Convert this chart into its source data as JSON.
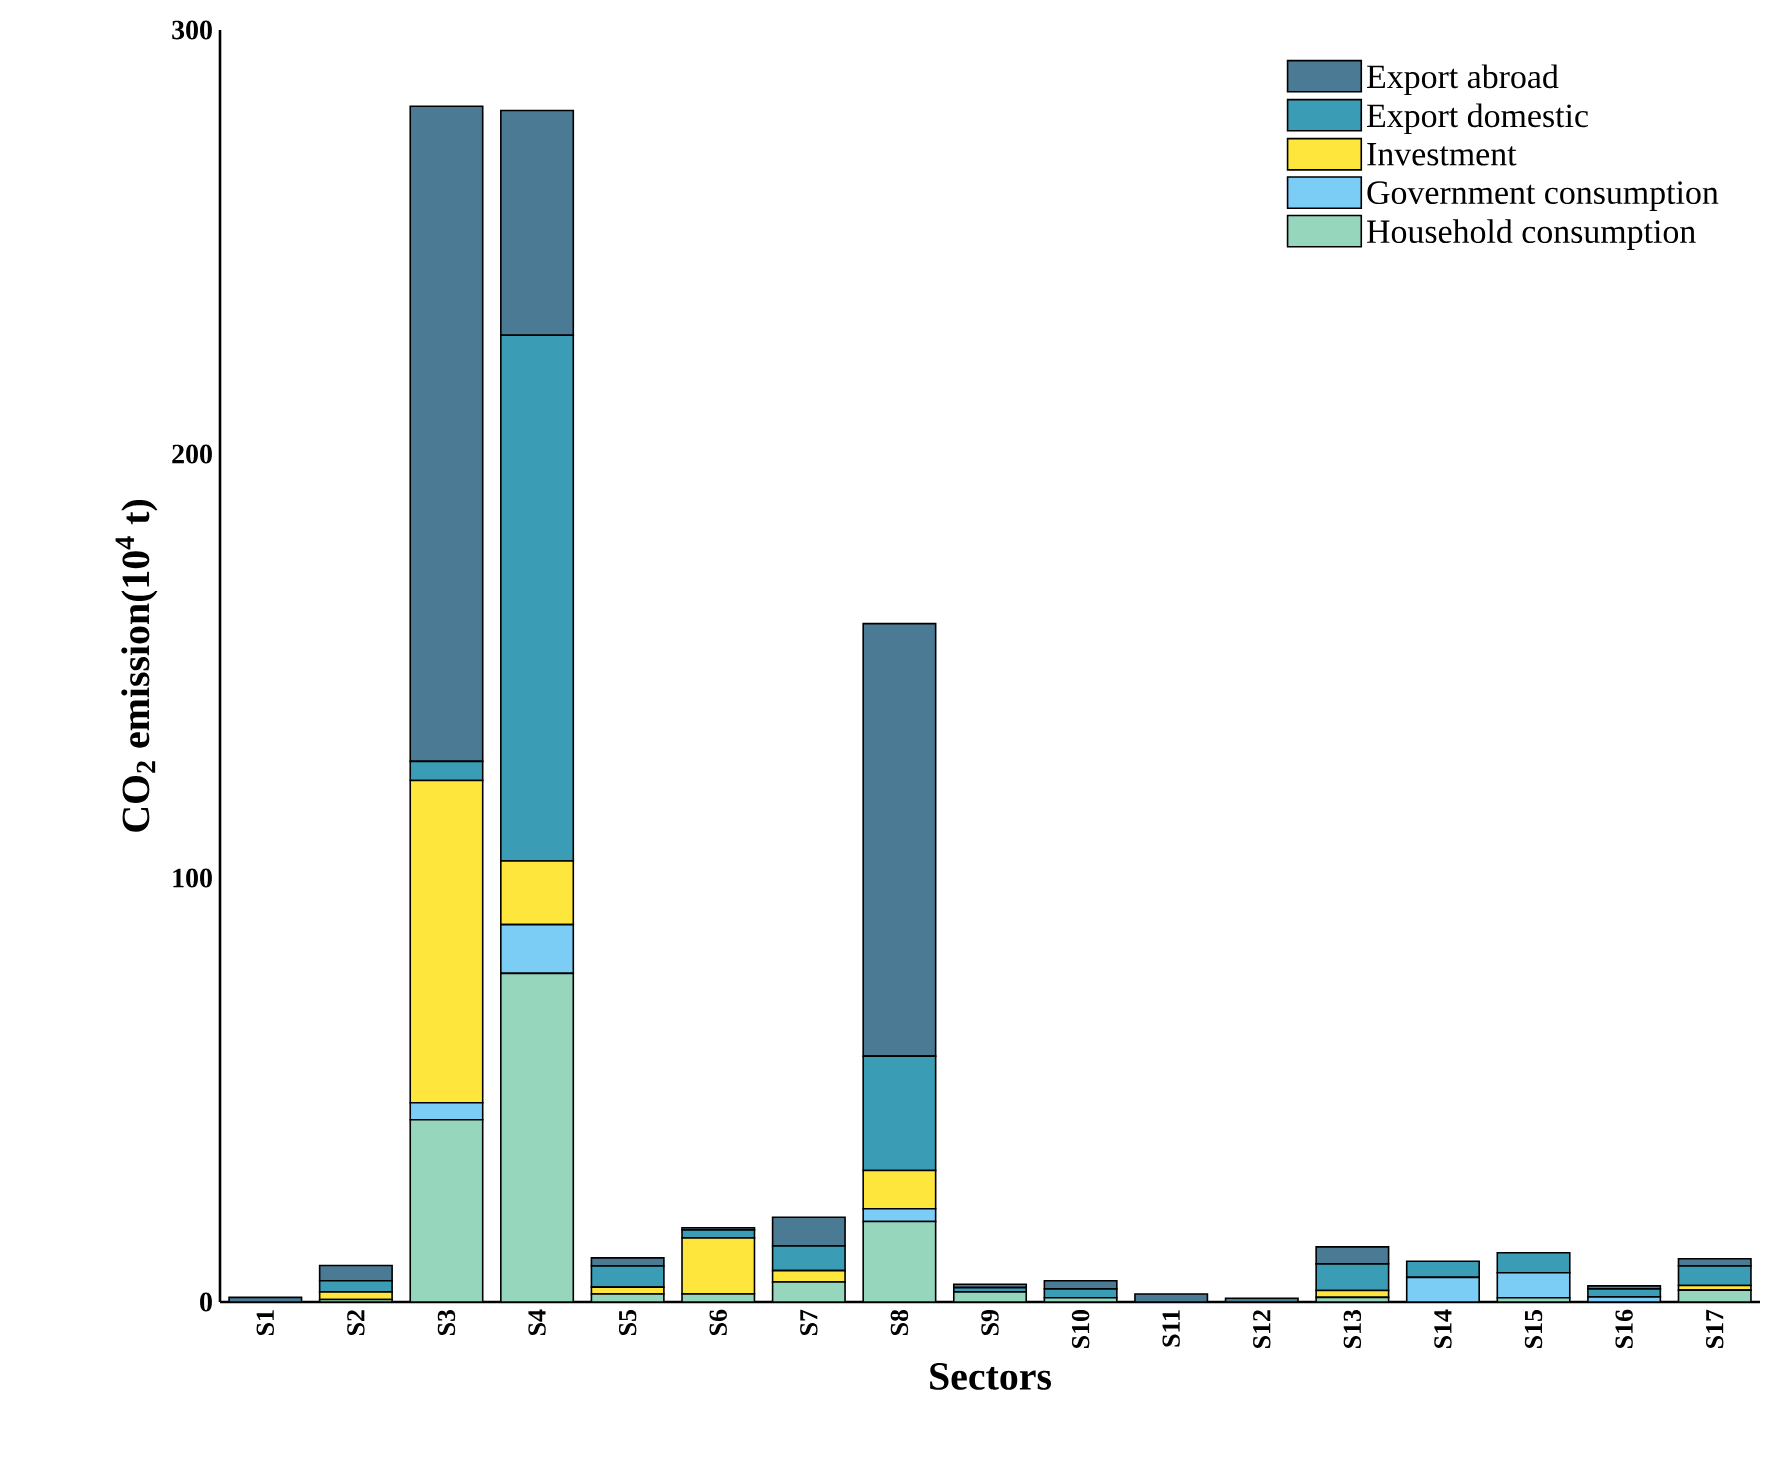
{
  "chart_data": {
    "type": "bar",
    "stacked": true,
    "xlabel": "Sectors",
    "ylabel": "CO$_{2}$ emission(10$^{4}$ t)",
    "categories": [
      "S1",
      "S2",
      "S3",
      "S4",
      "S5",
      "S6",
      "S7",
      "S8",
      "S9",
      "S10",
      "S11",
      "S12",
      "S13",
      "S14",
      "S15",
      "S16",
      "S17"
    ],
    "ylim": [
      0,
      300
    ],
    "yticks": [
      0,
      100,
      200,
      300
    ],
    "legend": "top right",
    "series": [
      {
        "name": "Household consumption",
        "color": "#96d6bc",
        "values": [
          0,
          0.6,
          43,
          77.5,
          1.9,
          1.9,
          4.7,
          19,
          2.4,
          1,
          0,
          0,
          1.1,
          0,
          1,
          0,
          2.8
        ]
      },
      {
        "name": "Government consumption",
        "color": "#7ccdf6",
        "values": [
          0,
          0,
          4,
          11.5,
          0,
          0,
          0,
          3,
          0,
          0,
          0,
          0,
          0,
          5.8,
          5.9,
          1.2,
          0
        ]
      },
      {
        "name": "Investment",
        "color": "#ffe63c",
        "values": [
          0,
          1.8,
          76,
          15,
          1.6,
          13.2,
          2.7,
          9,
          0,
          0,
          0,
          0,
          1.6,
          0,
          0,
          0,
          1.1
        ]
      },
      {
        "name": "Export domestic",
        "color": "#3a9db5",
        "values": [
          0,
          2.6,
          4.5,
          124,
          5,
          1.9,
          5.8,
          27,
          1,
          2.1,
          0,
          0,
          6.3,
          3.8,
          4.7,
          1.9,
          4.6
        ]
      },
      {
        "name": "Export abroad",
        "color": "#4a7a94",
        "values": [
          1.1,
          3.6,
          154.5,
          53,
          1.9,
          0.5,
          6.8,
          102,
          0.8,
          1.9,
          1.9,
          0.9,
          4,
          0,
          0,
          0.7,
          1.7
        ]
      }
    ]
  }
}
